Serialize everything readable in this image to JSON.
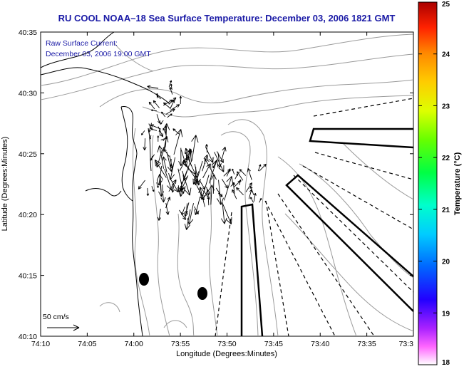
{
  "title": "RU COOL  NOAA–18  Sea Surface Temperature:  December 03, 2006 1821 GMT",
  "subtitle_lines": [
    "Raw Surface Current:",
    "December 03, 2006 19:00 GMT"
  ],
  "x_axis": {
    "label": "Longitude (Degrees:Minutes)",
    "ticks": [
      "74:10",
      "74:05",
      "74:00",
      "73:55",
      "73:50",
      "73:45",
      "73:40",
      "73:35",
      "73:3"
    ]
  },
  "y_axis": {
    "label": "Latitude (Degrees:Minutes)",
    "ticks": [
      "40:35",
      "40:30",
      "40:25",
      "40:20",
      "40:15",
      "40:10"
    ]
  },
  "scale_arrow_label": "50 cm/s",
  "colorbar": {
    "label": "Temperature (°C)",
    "ticks": [
      "25",
      "24",
      "23",
      "22",
      "21",
      "20",
      "19",
      "18"
    ],
    "range": [
      18,
      25
    ]
  },
  "colors": {
    "title": "#1a1aa6",
    "land_contour": "#000000",
    "bathymetry": "#9a9a9a",
    "vectors": "#000000"
  }
}
